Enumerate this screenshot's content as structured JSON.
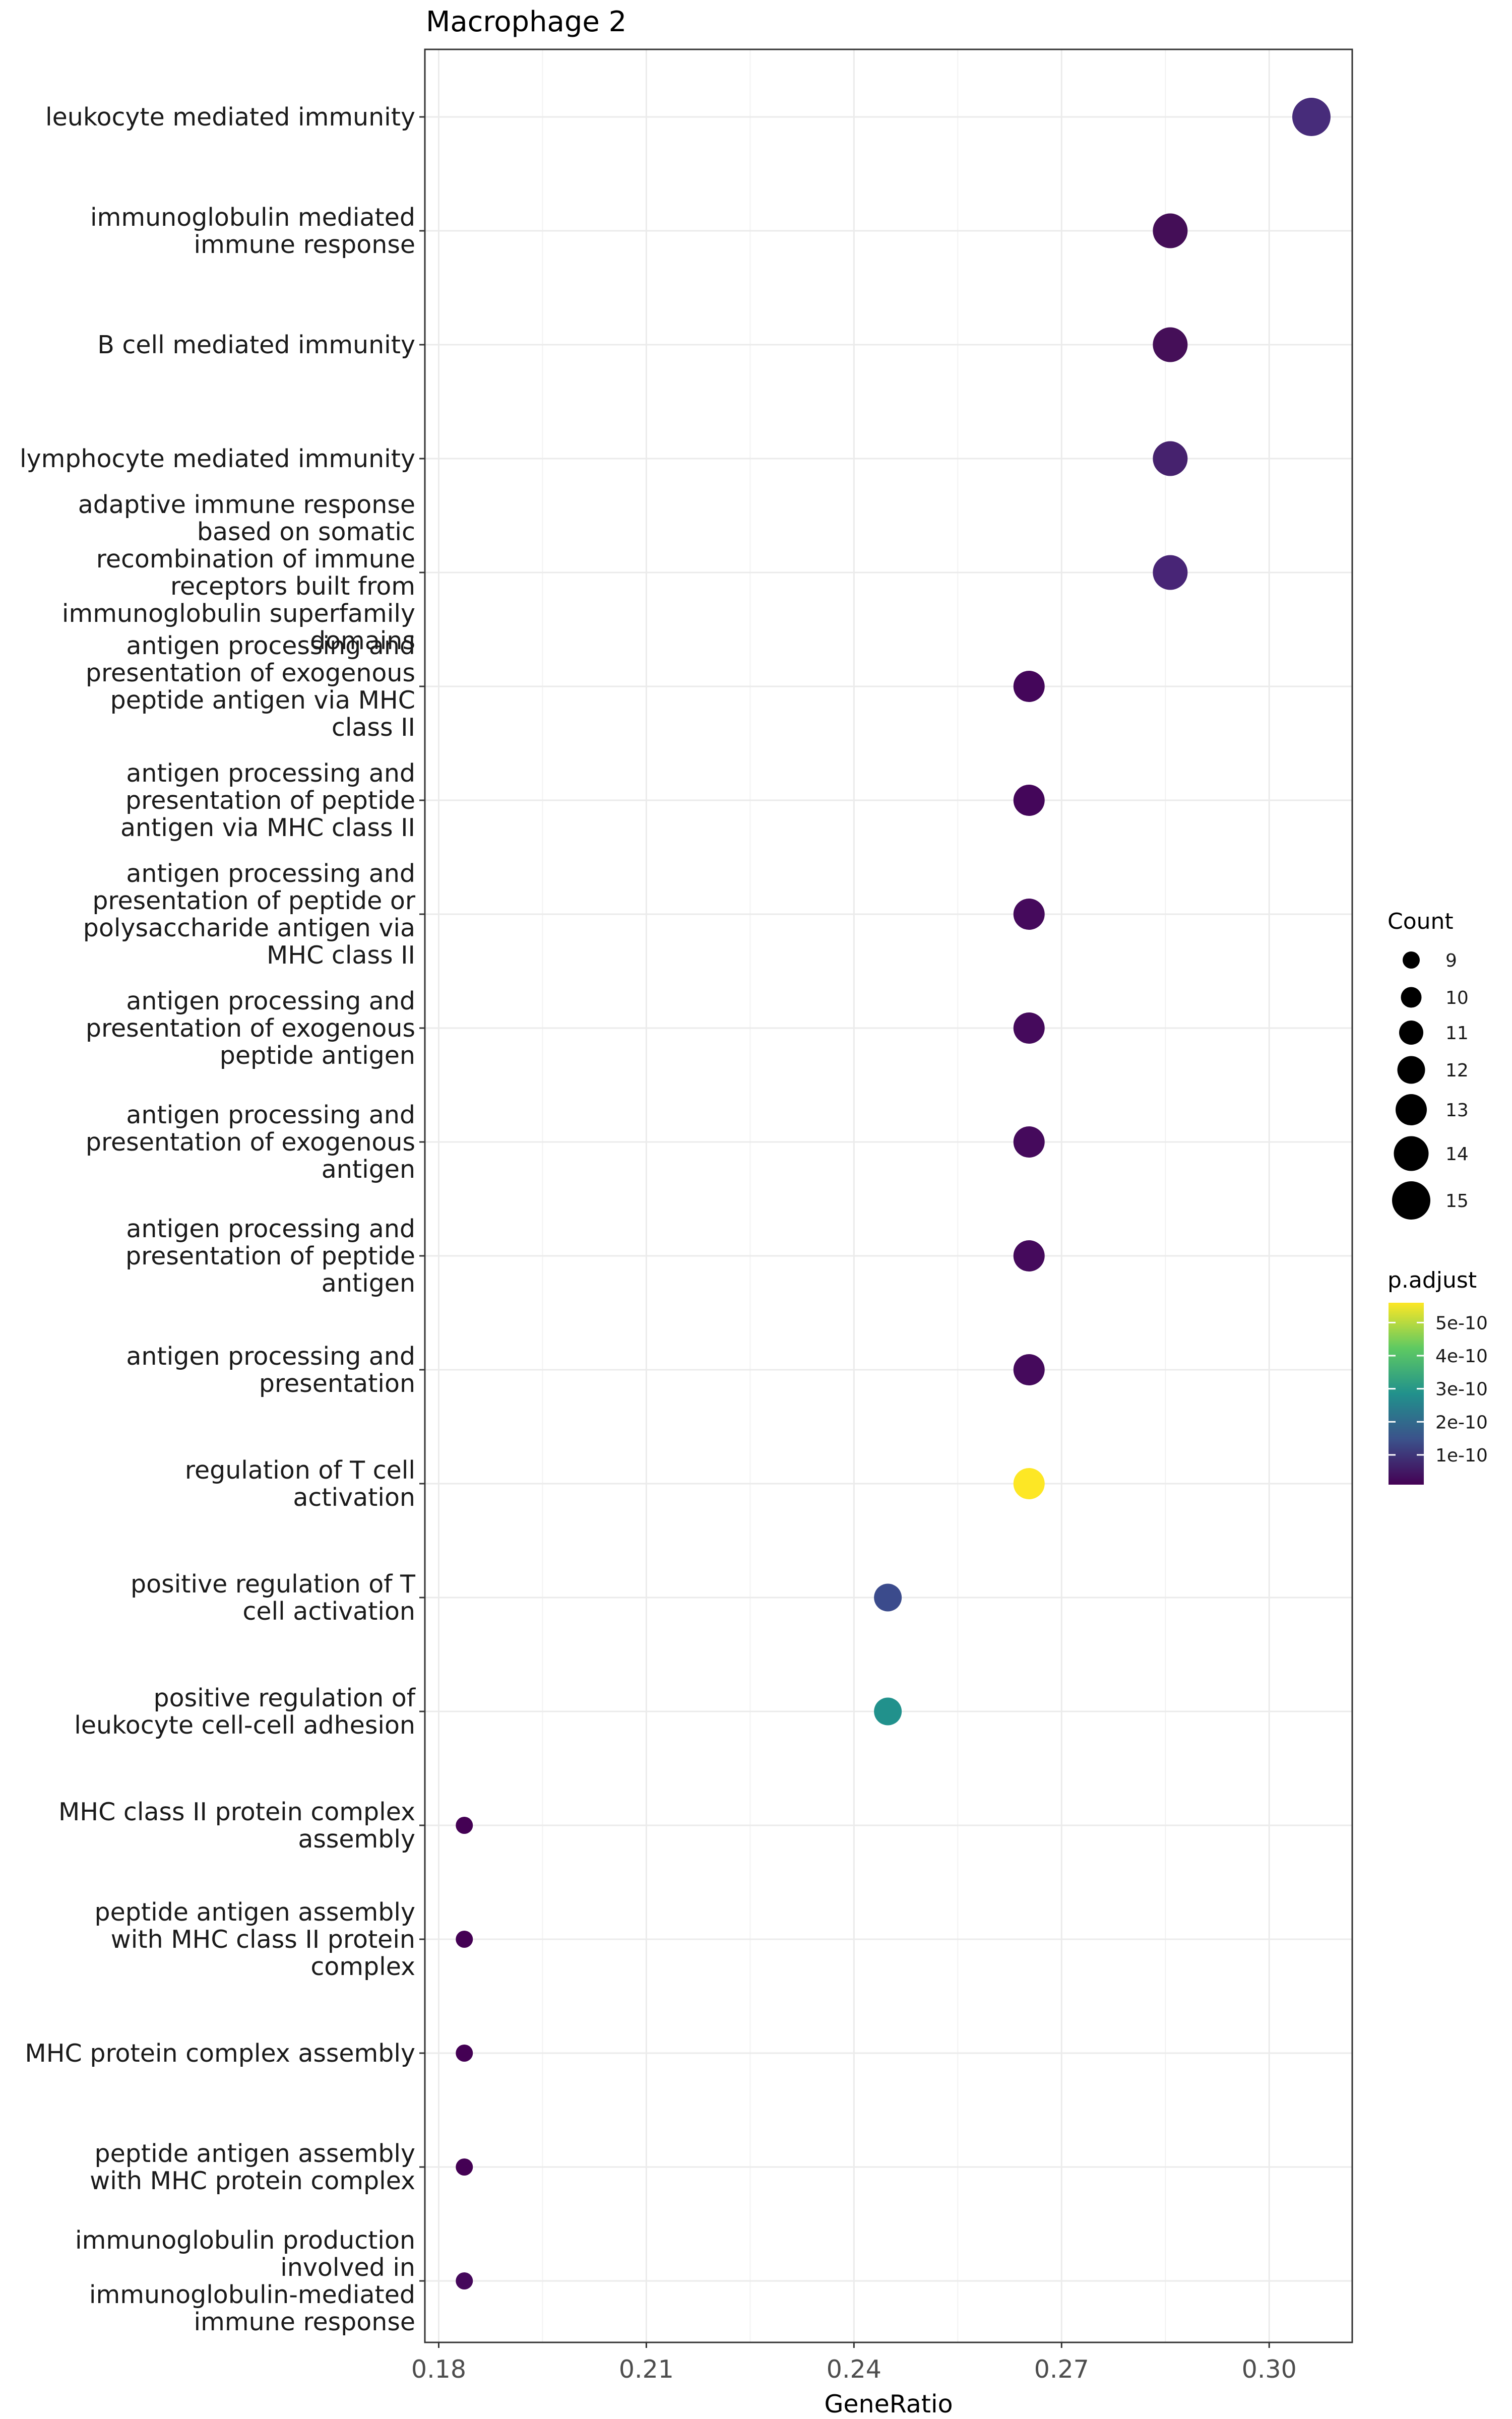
{
  "chart_data": {
    "type": "scatter",
    "title": "Macrophage 2",
    "xlabel": "GeneRatio",
    "ylabel": "",
    "xlim": [
      0.178,
      0.312
    ],
    "xticks": [
      0.18,
      0.21,
      0.24,
      0.27,
      0.3
    ],
    "xtick_labels": [
      "0.18",
      "0.21",
      "0.24",
      "0.27",
      "0.30"
    ],
    "grid": true,
    "categories": [
      {
        "lines": [
          "leukocyte mediated immunity"
        ]
      },
      {
        "lines": [
          "immunoglobulin mediated",
          "immune response"
        ]
      },
      {
        "lines": [
          "B cell mediated immunity"
        ]
      },
      {
        "lines": [
          "lymphocyte mediated immunity"
        ]
      },
      {
        "lines": [
          "adaptive immune response",
          "based on somatic",
          "recombination of immune",
          "receptors built from",
          "immunoglobulin superfamily",
          "domains"
        ]
      },
      {
        "lines": [
          "antigen processing and",
          "presentation of exogenous",
          "peptide antigen via MHC",
          "class II"
        ]
      },
      {
        "lines": [
          "antigen processing and",
          "presentation of peptide",
          "antigen via MHC class II"
        ]
      },
      {
        "lines": [
          "antigen processing and",
          "presentation of peptide or",
          "polysaccharide antigen via",
          "MHC class II"
        ]
      },
      {
        "lines": [
          "antigen processing and",
          "presentation of exogenous",
          "peptide antigen"
        ]
      },
      {
        "lines": [
          "antigen processing and",
          "presentation of exogenous",
          "antigen"
        ]
      },
      {
        "lines": [
          "antigen processing and",
          "presentation of peptide",
          "antigen"
        ]
      },
      {
        "lines": [
          "antigen processing and",
          "presentation"
        ]
      },
      {
        "lines": [
          "regulation of T cell",
          "activation"
        ]
      },
      {
        "lines": [
          "positive regulation of T",
          "cell activation"
        ]
      },
      {
        "lines": [
          "positive regulation of",
          "leukocyte cell-cell adhesion"
        ]
      },
      {
        "lines": [
          "MHC class II protein complex",
          "assembly"
        ]
      },
      {
        "lines": [
          "peptide antigen assembly",
          "with MHC class II protein",
          "complex"
        ]
      },
      {
        "lines": [
          "MHC protein complex assembly"
        ]
      },
      {
        "lines": [
          "peptide antigen assembly",
          "with MHC protein complex"
        ]
      },
      {
        "lines": [
          "immunoglobulin production",
          "involved in",
          "immunoglobulin-mediated",
          "immune response"
        ]
      }
    ],
    "points": [
      {
        "x": 0.3061,
        "count": 15,
        "color": "#472c7a"
      },
      {
        "x": 0.2857,
        "count": 14,
        "color": "#440e57"
      },
      {
        "x": 0.2857,
        "count": 14,
        "color": "#450f58"
      },
      {
        "x": 0.2857,
        "count": 14,
        "color": "#46226e"
      },
      {
        "x": 0.2857,
        "count": 14,
        "color": "#482576"
      },
      {
        "x": 0.2653,
        "count": 13,
        "color": "#44065a"
      },
      {
        "x": 0.2653,
        "count": 13,
        "color": "#44065a"
      },
      {
        "x": 0.2653,
        "count": 13,
        "color": "#450a5c"
      },
      {
        "x": 0.2653,
        "count": 13,
        "color": "#450a5c"
      },
      {
        "x": 0.2653,
        "count": 13,
        "color": "#450a5c"
      },
      {
        "x": 0.2653,
        "count": 13,
        "color": "#450a5c"
      },
      {
        "x": 0.2653,
        "count": 13,
        "color": "#450a5c"
      },
      {
        "x": 0.2653,
        "count": 13,
        "color": "#fde725"
      },
      {
        "x": 0.2449,
        "count": 12,
        "color": "#3b4b8c"
      },
      {
        "x": 0.2449,
        "count": 12,
        "color": "#21918c"
      },
      {
        "x": 0.1837,
        "count": 9,
        "color": "#440154"
      },
      {
        "x": 0.1837,
        "count": 9,
        "color": "#440154"
      },
      {
        "x": 0.1837,
        "count": 9,
        "color": "#440154"
      },
      {
        "x": 0.1837,
        "count": 9,
        "color": "#440154"
      },
      {
        "x": 0.1837,
        "count": 9,
        "color": "#45085b"
      }
    ],
    "legend": {
      "size_title": "Count",
      "size_values": [
        9,
        10,
        11,
        12,
        13,
        14,
        15
      ],
      "size_labels": [
        "9",
        "10",
        "11",
        "12",
        "13",
        "14",
        "15"
      ],
      "color_title": "p.adjust",
      "color_ticks": [
        5e-10,
        4e-10,
        3e-10,
        2e-10,
        1e-10
      ],
      "color_tick_labels": [
        "5e-10",
        "4e-10",
        "3e-10",
        "2e-10",
        "1e-10"
      ],
      "color_range": [
        1e-11,
        5.6e-10
      ],
      "gradient_colors": [
        "#fde725",
        "#5ec962",
        "#21918c",
        "#3b528b",
        "#440154"
      ],
      "placement": "right"
    }
  }
}
